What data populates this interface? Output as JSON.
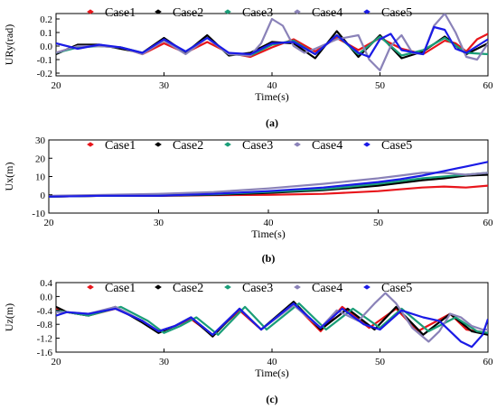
{
  "colors": {
    "Case1": "#e8151b",
    "Case2": "#000000",
    "Case3": "#1a9e78",
    "Case4": "#8a82b8",
    "Case5": "#1a1ae6"
  },
  "chart_data": [
    {
      "type": "line",
      "caption": "(a)",
      "xlabel": "Time(s)",
      "ylabel": "URy(rad)",
      "xlim": [
        20,
        60
      ],
      "ylim": [
        -0.22,
        0.24
      ],
      "xticks": [
        20,
        30,
        40,
        50,
        60
      ],
      "yticks": [
        -0.2,
        -0.1,
        0.0,
        0.1,
        0.2
      ],
      "ytick_labels": [
        "-0.2",
        "-0.1",
        "0.0",
        "0.1",
        "0.2"
      ],
      "legend_position": "top",
      "grid": false,
      "series": [
        {
          "name": "Case1",
          "x": [
            20,
            22,
            24,
            26,
            28,
            30,
            32,
            34,
            36,
            38,
            40,
            42,
            44,
            46,
            48,
            50,
            52,
            54,
            56,
            57,
            58,
            59,
            60
          ],
          "y": [
            -0.05,
            0.0,
            0.0,
            -0.01,
            -0.06,
            0.02,
            -0.05,
            0.03,
            -0.05,
            -0.08,
            -0.01,
            0.05,
            -0.04,
            0.06,
            -0.03,
            0.06,
            -0.02,
            -0.06,
            0.04,
            0.02,
            -0.04,
            0.05,
            0.09
          ]
        },
        {
          "name": "Case2",
          "x": [
            20,
            22,
            24,
            26,
            28,
            30,
            32,
            34,
            36,
            38,
            40,
            42,
            44,
            46,
            48,
            50,
            52,
            54,
            56,
            58,
            60
          ],
          "y": [
            -0.06,
            0.01,
            0.01,
            -0.02,
            -0.05,
            0.06,
            -0.05,
            0.08,
            -0.07,
            -0.05,
            0.03,
            0.02,
            -0.09,
            0.11,
            -0.08,
            0.08,
            -0.09,
            -0.04,
            0.07,
            -0.06,
            0.02
          ]
        },
        {
          "name": "Case3",
          "x": [
            20,
            22,
            24,
            26,
            28,
            30,
            32,
            34,
            36,
            38,
            40,
            42,
            44,
            46,
            48,
            50,
            52,
            54,
            56,
            58,
            60
          ],
          "y": [
            -0.05,
            -0.01,
            0.0,
            -0.01,
            -0.05,
            0.04,
            -0.04,
            0.06,
            -0.06,
            -0.07,
            0.01,
            0.04,
            -0.06,
            0.08,
            -0.06,
            0.07,
            -0.07,
            -0.03,
            0.06,
            -0.05,
            -0.06
          ]
        },
        {
          "name": "Case4",
          "x": [
            20,
            22,
            24,
            26,
            28,
            30,
            32,
            34,
            36,
            38,
            39,
            40,
            41,
            42,
            43,
            44,
            46,
            48,
            49,
            50,
            51,
            52,
            53,
            54,
            55,
            56,
            57,
            58,
            59,
            60
          ],
          "y": [
            -0.05,
            0.0,
            0.0,
            -0.01,
            -0.06,
            0.04,
            -0.06,
            0.06,
            -0.06,
            -0.07,
            0.02,
            0.2,
            0.15,
            0.0,
            -0.05,
            -0.02,
            0.05,
            0.08,
            -0.1,
            -0.18,
            0.0,
            0.08,
            -0.05,
            -0.06,
            0.15,
            0.24,
            0.1,
            -0.08,
            -0.1,
            0.02
          ]
        },
        {
          "name": "Case5",
          "x": [
            20,
            22,
            24,
            26,
            28,
            30,
            32,
            34,
            36,
            38,
            40,
            42,
            44,
            46,
            48,
            49,
            50,
            51,
            52,
            54,
            55,
            56,
            57,
            58,
            60
          ],
          "y": [
            0.02,
            -0.02,
            0.01,
            -0.01,
            -0.05,
            0.05,
            -0.04,
            0.06,
            -0.05,
            -0.06,
            0.02,
            0.03,
            -0.06,
            0.08,
            -0.05,
            -0.08,
            0.05,
            0.09,
            -0.03,
            -0.06,
            0.14,
            0.12,
            -0.02,
            -0.05,
            0.05
          ]
        }
      ]
    },
    {
      "type": "line",
      "caption": "(b)",
      "xlabel": "Time(s)",
      "ylabel": "Ux(m)",
      "xlim": [
        20,
        60
      ],
      "ylim": [
        -10,
        30
      ],
      "xticks": [
        20,
        30,
        40,
        50,
        60
      ],
      "yticks": [
        -10,
        0,
        10,
        20,
        30
      ],
      "ytick_labels": [
        "-10",
        "0",
        "10",
        "20",
        "30"
      ],
      "legend_position": "top",
      "grid": false,
      "series": [
        {
          "name": "Case1",
          "x": [
            20,
            25,
            30,
            35,
            40,
            45,
            50,
            52,
            54,
            56,
            58,
            60
          ],
          "y": [
            -1,
            -0.5,
            -0.5,
            -0.2,
            0,
            0.5,
            2,
            3,
            4,
            4.5,
            4,
            5
          ]
        },
        {
          "name": "Case2",
          "x": [
            20,
            25,
            30,
            35,
            40,
            45,
            50,
            52,
            54,
            56,
            58,
            60
          ],
          "y": [
            -1,
            -0.5,
            -0.5,
            0,
            1,
            2.5,
            5,
            6.5,
            8,
            9,
            10.5,
            11
          ]
        },
        {
          "name": "Case3",
          "x": [
            20,
            25,
            30,
            35,
            40,
            45,
            50,
            52,
            54,
            56,
            58,
            60
          ],
          "y": [
            -1,
            -0.5,
            -0.3,
            0.3,
            1.5,
            3,
            6,
            7.5,
            9,
            10,
            11,
            12
          ]
        },
        {
          "name": "Case4",
          "x": [
            20,
            25,
            30,
            35,
            40,
            45,
            50,
            52,
            54,
            56,
            58,
            60
          ],
          "y": [
            -0.5,
            0,
            0.5,
            1.5,
            3.5,
            6,
            9,
            10.5,
            12,
            12,
            11,
            12
          ]
        },
        {
          "name": "Case5",
          "x": [
            20,
            25,
            30,
            35,
            40,
            45,
            50,
            52,
            54,
            56,
            58,
            60
          ],
          "y": [
            -1,
            -0.5,
            -0.5,
            0.5,
            2,
            4,
            7,
            8.5,
            10.5,
            13,
            15.5,
            18
          ]
        }
      ]
    },
    {
      "type": "line",
      "caption": "(c)",
      "xlabel": "Time(s)",
      "ylabel": "Uz(m)",
      "xlim": [
        20,
        60
      ],
      "ylim": [
        -1.6,
        0.4
      ],
      "xticks": [
        20,
        30,
        40,
        50,
        60
      ],
      "yticks": [
        -1.6,
        -1.2,
        -0.8,
        -0.4,
        0.0,
        0.4
      ],
      "ytick_labels": [
        "-1.6",
        "-1.2",
        "-0.8",
        "-0.4",
        "0.0",
        "0.4"
      ],
      "legend_position": "top",
      "grid": false,
      "series": [
        {
          "name": "Case1",
          "x": [
            20,
            21,
            23,
            25.5,
            28,
            29.5,
            31,
            32.5,
            34.5,
            37,
            39,
            42,
            44.5,
            46.5,
            49,
            51.5,
            53.5,
            56.5,
            58,
            60
          ],
          "y": [
            -0.35,
            -0.45,
            -0.55,
            -0.35,
            -0.7,
            -1.0,
            -0.85,
            -0.65,
            -1.1,
            -0.4,
            -0.95,
            -0.2,
            -1.0,
            -0.3,
            -0.9,
            -0.35,
            -1.0,
            -0.5,
            -0.95,
            -1.05
          ]
        },
        {
          "name": "Case2",
          "x": [
            20,
            21,
            23,
            25.5,
            28,
            29.5,
            31,
            32.5,
            34.5,
            37,
            39,
            42,
            44.5,
            47,
            49.5,
            51.5,
            54,
            56.5,
            58.5,
            60
          ],
          "y": [
            -0.3,
            -0.45,
            -0.55,
            -0.3,
            -0.75,
            -1.05,
            -0.85,
            -0.6,
            -1.15,
            -0.35,
            -0.95,
            -0.15,
            -0.95,
            -0.35,
            -0.95,
            -0.3,
            -1.1,
            -0.5,
            -1.0,
            -1.1
          ]
        },
        {
          "name": "Case3",
          "x": [
            20,
            21,
            23,
            26,
            28.5,
            30,
            31.5,
            33,
            35,
            37.5,
            39.5,
            42.5,
            45,
            47.5,
            50,
            52,
            54.5,
            57,
            59,
            60
          ],
          "y": [
            -0.4,
            -0.45,
            -0.55,
            -0.3,
            -0.7,
            -1.05,
            -0.85,
            -0.6,
            -1.1,
            -0.3,
            -0.95,
            -0.2,
            -0.95,
            -0.35,
            -0.9,
            -0.35,
            -1.0,
            -0.6,
            -1.0,
            -1.05
          ]
        },
        {
          "name": "Case4",
          "x": [
            20,
            21,
            23,
            25.5,
            28,
            29.5,
            31,
            32.5,
            34.5,
            37,
            39,
            42,
            44.5,
            46,
            48,
            49.5,
            50.5,
            51.5,
            53,
            54.5,
            55.5,
            56.5,
            57.5,
            58.5,
            59.5,
            60
          ],
          "y": [
            -0.45,
            -0.45,
            -0.5,
            -0.3,
            -0.7,
            -1.0,
            -0.85,
            -0.6,
            -1.1,
            -0.35,
            -0.95,
            -0.25,
            -0.9,
            -0.4,
            -0.7,
            -0.2,
            0.1,
            -0.2,
            -0.9,
            -1.3,
            -1.0,
            -0.5,
            -0.6,
            -0.85,
            -0.95,
            -0.95
          ]
        },
        {
          "name": "Case5",
          "x": [
            20,
            21,
            23,
            25.5,
            28,
            29.5,
            31,
            32.5,
            34.5,
            37,
            39,
            42,
            44.5,
            46.5,
            48.5,
            50,
            52,
            54,
            55.5,
            56.5,
            57.5,
            58.5,
            59.5,
            60
          ],
          "y": [
            -0.55,
            -0.45,
            -0.5,
            -0.35,
            -0.7,
            -1.0,
            -0.85,
            -0.6,
            -1.1,
            -0.35,
            -0.95,
            -0.2,
            -0.9,
            -0.35,
            -0.8,
            -0.95,
            -0.4,
            -0.6,
            -0.7,
            -1.0,
            -1.3,
            -1.45,
            -1.1,
            -0.65
          ]
        }
      ]
    }
  ]
}
